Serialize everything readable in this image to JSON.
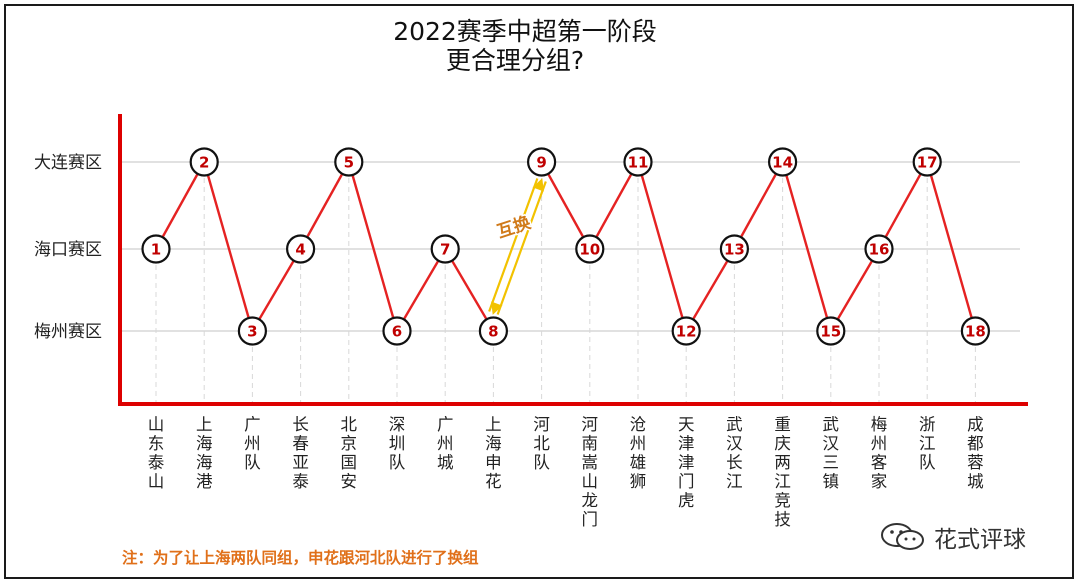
{
  "chart_data": {
    "type": "line",
    "title": "2022赛季中超第一阶段",
    "subtitle": "更合理分组?",
    "y_categories": [
      "大连赛区",
      "海口赛区",
      "梅州赛区"
    ],
    "teams": [
      {
        "num": 1,
        "name": "山东泰山",
        "zone": "海口赛区"
      },
      {
        "num": 2,
        "name": "上海海港",
        "zone": "大连赛区"
      },
      {
        "num": 3,
        "name": "广州队",
        "zone": "梅州赛区"
      },
      {
        "num": 4,
        "name": "长春亚泰",
        "zone": "海口赛区"
      },
      {
        "num": 5,
        "name": "北京国安",
        "zone": "大连赛区"
      },
      {
        "num": 6,
        "name": "深圳队",
        "zone": "梅州赛区"
      },
      {
        "num": 7,
        "name": "广州城",
        "zone": "海口赛区"
      },
      {
        "num": 8,
        "name": "上海申花",
        "zone": "梅州赛区"
      },
      {
        "num": 9,
        "name": "河北队",
        "zone": "大连赛区"
      },
      {
        "num": 10,
        "name": "河南嵩山龙门",
        "zone": "海口赛区"
      },
      {
        "num": 11,
        "name": "沧州雄狮",
        "zone": "大连赛区"
      },
      {
        "num": 12,
        "name": "天津津门虎",
        "zone": "梅州赛区"
      },
      {
        "num": 13,
        "name": "武汉长江",
        "zone": "海口赛区"
      },
      {
        "num": 14,
        "name": "重庆两江竞技",
        "zone": "大连赛区"
      },
      {
        "num": 15,
        "name": "武汉三镇",
        "zone": "梅州赛区"
      },
      {
        "num": 16,
        "name": "梅州客家",
        "zone": "海口赛区"
      },
      {
        "num": 17,
        "name": "浙江队",
        "zone": "大连赛区"
      },
      {
        "num": 18,
        "name": "成都蓉城",
        "zone": "梅州赛区"
      }
    ],
    "annotation": "互换",
    "swap_between": [
      9,
      8
    ],
    "colors": {
      "line": "#e52222",
      "axis": "#dd0000",
      "node_text": "#c00000",
      "swap": "#f2c200",
      "grid": "#cfcfcf"
    }
  },
  "note": "注：为了让上海两队同组，申花跟河北队进行了换组",
  "brand": "花式评球",
  "brand_icon": "wechat-icon"
}
